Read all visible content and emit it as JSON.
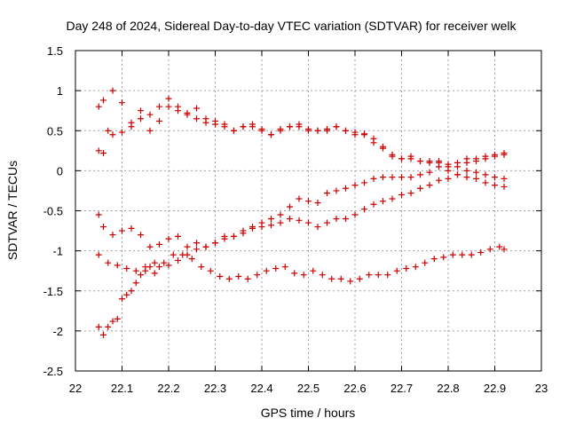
{
  "chart_data": {
    "type": "scatter",
    "title": "Day 248 of 2024, Sidereal Day-to-day VTEC variation (SDTVAR) for receiver welk",
    "xlabel": "GPS time / hours",
    "ylabel": "SDTVAR / TECUs",
    "xlim": [
      22,
      23
    ],
    "ylim": [
      -2.5,
      1.5
    ],
    "xticks": [
      22,
      22.1,
      22.2,
      22.3,
      22.4,
      22.5,
      22.6,
      22.7,
      22.8,
      22.9,
      23
    ],
    "xtick_labels": [
      "22",
      "22.1",
      "22.2",
      "22.3",
      "22.4",
      "22.5",
      "22.6",
      "22.7",
      "22.8",
      "22.9",
      "23"
    ],
    "yticks": [
      -2.5,
      -2,
      -1.5,
      -1,
      -0.5,
      0,
      0.5,
      1,
      1.5
    ],
    "ytick_labels": [
      "-2.5",
      "-2",
      "-1.5",
      "-1",
      "-0.5",
      "0",
      "0.5",
      "1",
      "1.5"
    ],
    "grid": true,
    "marker": "+",
    "color": "#cc0000",
    "series": [
      {
        "name": "series-1",
        "x": [
          22.05,
          22.06,
          22.08,
          22.1,
          22.12,
          22.14,
          22.16,
          22.18,
          22.2,
          22.22,
          22.24,
          22.26,
          22.28,
          22.3,
          22.32,
          22.34,
          22.36,
          22.38,
          22.4,
          22.42,
          22.44,
          22.46,
          22.48,
          22.5,
          22.52,
          22.54,
          22.56,
          22.58,
          22.6,
          22.62,
          22.64,
          22.66,
          22.68,
          22.7,
          22.72,
          22.74,
          22.76,
          22.78,
          22.8,
          22.82,
          22.84,
          22.86,
          22.88,
          22.9,
          22.92
        ],
        "y": [
          0.8,
          0.88,
          1.0,
          0.85,
          0.6,
          0.75,
          0.7,
          0.8,
          0.9,
          0.8,
          0.72,
          0.78,
          0.65,
          0.62,
          0.58,
          0.5,
          0.55,
          0.58,
          0.52,
          0.45,
          0.5,
          0.55,
          0.58,
          0.52,
          0.5,
          0.52,
          0.55,
          0.5,
          0.48,
          0.46,
          0.4,
          0.3,
          0.2,
          0.15,
          0.18,
          0.12,
          0.1,
          0.12,
          0.05,
          0.1,
          0.15,
          0.15,
          0.18,
          0.2,
          0.22
        ]
      },
      {
        "name": "series-2",
        "x": [
          22.05,
          22.06,
          22.07,
          22.08,
          22.1,
          22.12,
          22.14,
          22.16,
          22.18,
          22.2,
          22.22,
          22.24,
          22.26,
          22.28,
          22.3,
          22.32,
          22.34,
          22.36,
          22.38,
          22.4,
          22.42,
          22.44,
          22.46,
          22.48,
          22.5,
          22.52,
          22.54,
          22.56,
          22.58,
          22.6,
          22.62,
          22.64,
          22.66,
          22.68,
          22.7,
          22.72,
          22.74,
          22.76,
          22.78,
          22.8,
          22.82,
          22.84,
          22.86,
          22.88,
          22.9,
          22.92
        ],
        "y": [
          0.25,
          0.22,
          0.5,
          0.45,
          0.48,
          0.55,
          0.65,
          0.5,
          0.62,
          0.8,
          0.75,
          0.7,
          0.65,
          0.6,
          0.58,
          0.55,
          0.5,
          0.55,
          0.55,
          0.5,
          0.45,
          0.52,
          0.55,
          0.55,
          0.5,
          0.5,
          0.5,
          0.55,
          0.5,
          0.45,
          0.45,
          0.35,
          0.28,
          0.18,
          0.15,
          0.15,
          0.12,
          0.12,
          0.1,
          0.0,
          -0.05,
          -0.08,
          -0.1,
          -0.15,
          -0.18,
          -0.2
        ]
      },
      {
        "name": "series-3",
        "x": [
          22.05,
          22.06,
          22.08,
          22.1,
          22.12,
          22.14,
          22.16,
          22.18,
          22.2,
          22.22,
          22.24,
          22.26,
          22.28,
          22.3,
          22.32,
          22.34,
          22.36,
          22.38,
          22.4,
          22.42,
          22.44,
          22.46,
          22.48,
          22.5,
          22.52,
          22.54,
          22.56,
          22.58,
          22.6,
          22.62,
          22.64,
          22.66,
          22.68,
          22.7,
          22.72,
          22.74,
          22.76,
          22.78,
          22.8,
          22.82,
          22.84,
          22.86,
          22.88,
          22.9,
          22.92
        ],
        "y": [
          -0.55,
          -0.7,
          -0.8,
          -0.75,
          -0.72,
          -0.8,
          -0.95,
          -0.92,
          -0.85,
          -0.82,
          -0.95,
          -0.9,
          -0.95,
          -0.9,
          -0.85,
          -0.82,
          -0.75,
          -0.7,
          -0.65,
          -0.6,
          -0.55,
          -0.45,
          -0.35,
          -0.38,
          -0.4,
          -0.28,
          -0.25,
          -0.22,
          -0.18,
          -0.15,
          -0.1,
          -0.08,
          -0.08,
          -0.08,
          -0.08,
          -0.05,
          -0.02,
          0.05,
          0.08,
          0.05,
          0.1,
          0.12,
          0.15,
          0.18,
          0.2
        ]
      },
      {
        "name": "series-4",
        "x": [
          22.05,
          22.07,
          22.09,
          22.11,
          22.13,
          22.15,
          22.17,
          22.19,
          22.21,
          22.23,
          22.25,
          22.27,
          22.29,
          22.31,
          22.33,
          22.35,
          22.37,
          22.39,
          22.41,
          22.43,
          22.45,
          22.47,
          22.49,
          22.51,
          22.53,
          22.55,
          22.57,
          22.59,
          22.61,
          22.63,
          22.65,
          22.67,
          22.69,
          22.71,
          22.73,
          22.75,
          22.77,
          22.79,
          22.81,
          22.83,
          22.85,
          22.87,
          22.89,
          22.91,
          22.92
        ],
        "y": [
          -1.05,
          -1.15,
          -1.18,
          -1.22,
          -1.25,
          -1.2,
          -1.28,
          -1.15,
          -1.05,
          -1.05,
          -1.1,
          -1.2,
          -1.25,
          -1.32,
          -1.35,
          -1.32,
          -1.35,
          -1.3,
          -1.25,
          -1.22,
          -1.2,
          -1.28,
          -1.3,
          -1.25,
          -1.3,
          -1.35,
          -1.35,
          -1.38,
          -1.35,
          -1.3,
          -1.3,
          -1.3,
          -1.25,
          -1.22,
          -1.2,
          -1.15,
          -1.1,
          -1.08,
          -1.05,
          -1.05,
          -1.05,
          -1.02,
          -0.98,
          -0.95,
          -0.98
        ]
      },
      {
        "name": "series-5",
        "x": [
          22.05,
          22.06,
          22.07,
          22.08,
          22.09,
          22.1,
          22.11,
          22.12,
          22.13,
          22.14,
          22.15,
          22.16,
          22.17,
          22.18,
          22.2,
          22.22,
          22.24,
          22.26,
          22.28,
          22.3,
          22.32,
          22.34,
          22.36,
          22.38,
          22.4,
          22.42,
          22.44,
          22.46,
          22.48,
          22.5,
          22.52,
          22.54,
          22.56,
          22.58,
          22.6,
          22.62,
          22.64,
          22.66,
          22.68,
          22.7,
          22.72,
          22.74,
          22.76,
          22.78,
          22.8,
          22.82,
          22.84,
          22.86,
          22.88,
          22.9,
          22.92
        ],
        "y": [
          -1.95,
          -2.05,
          -1.95,
          -1.88,
          -1.85,
          -1.6,
          -1.55,
          -1.5,
          -1.4,
          -1.3,
          -1.25,
          -1.2,
          -1.15,
          -1.2,
          -1.18,
          -1.12,
          -1.05,
          -0.98,
          -0.95,
          -0.9,
          -0.82,
          -0.82,
          -0.78,
          -0.72,
          -0.7,
          -0.68,
          -0.65,
          -0.6,
          -0.62,
          -0.65,
          -0.7,
          -0.65,
          -0.6,
          -0.6,
          -0.55,
          -0.48,
          -0.42,
          -0.38,
          -0.35,
          -0.3,
          -0.28,
          -0.22,
          -0.18,
          -0.12,
          -0.1,
          -0.05,
          0.0,
          -0.02,
          -0.05,
          -0.08,
          -0.1
        ]
      }
    ]
  }
}
